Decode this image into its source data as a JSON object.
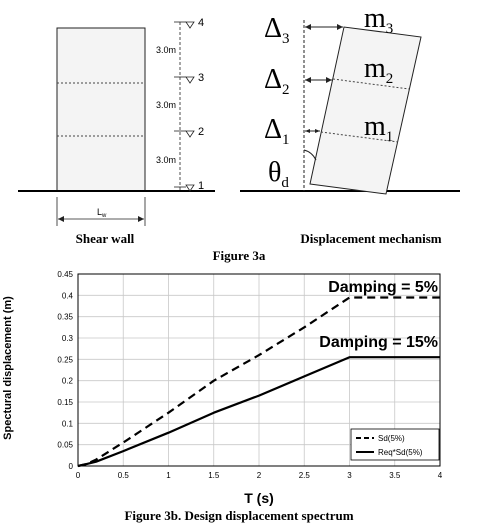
{
  "figure3a": {
    "shear_wall_caption": "Shear wall",
    "mechanism_caption": "Displacement mechanism",
    "figure_caption": "Figure 3a",
    "wall_width_label": "L",
    "wall_width_subscript": "w",
    "storey_height_labels": [
      "3.0m",
      "3.0m",
      "3.0m"
    ],
    "level_labels": [
      "4",
      "3",
      "2",
      "1"
    ],
    "delta_labels": [
      {
        "main": "Δ",
        "sub": "3"
      },
      {
        "main": "Δ",
        "sub": "2"
      },
      {
        "main": "Δ",
        "sub": "1"
      }
    ],
    "mass_labels": [
      {
        "main": "m",
        "sub": "3"
      },
      {
        "main": "m",
        "sub": "2"
      },
      {
        "main": "m",
        "sub": "1"
      }
    ],
    "theta_label": {
      "main": "θ",
      "sub": "d"
    }
  },
  "chart_data": {
    "type": "line",
    "xlabel": "T (s)",
    "ylabel": "Spectural displacement (m)",
    "xlim": [
      0,
      4
    ],
    "ylim": [
      0,
      0.45
    ],
    "xticks": [
      0,
      0.5,
      1,
      1.5,
      2,
      2.5,
      3,
      3.5,
      4
    ],
    "yticks": [
      0,
      0.05,
      0.1,
      0.15,
      0.2,
      0.25,
      0.3,
      0.35,
      0.4,
      0.45
    ],
    "grid": true,
    "legend_position": "bottom-right",
    "series": [
      {
        "name": "Sd(5%)",
        "style": "dashed",
        "x": [
          0,
          0.1,
          0.2,
          0.5,
          1.0,
          1.5,
          2.0,
          2.5,
          3.0,
          4.0
        ],
        "y": [
          0,
          0.005,
          0.015,
          0.055,
          0.125,
          0.2,
          0.26,
          0.325,
          0.395,
          0.395
        ]
      },
      {
        "name": "Req*Sd(5%)",
        "style": "solid",
        "x": [
          0,
          0.1,
          0.2,
          0.5,
          1.0,
          1.5,
          2.0,
          2.5,
          3.0,
          4.0
        ],
        "y": [
          0,
          0.005,
          0.01,
          0.035,
          0.078,
          0.125,
          0.165,
          0.21,
          0.255,
          0.255
        ]
      }
    ],
    "annotations": [
      "Damping = 5%",
      "Damping = 15%"
    ],
    "caption": "Figure 3b. Design displacement spectrum"
  }
}
